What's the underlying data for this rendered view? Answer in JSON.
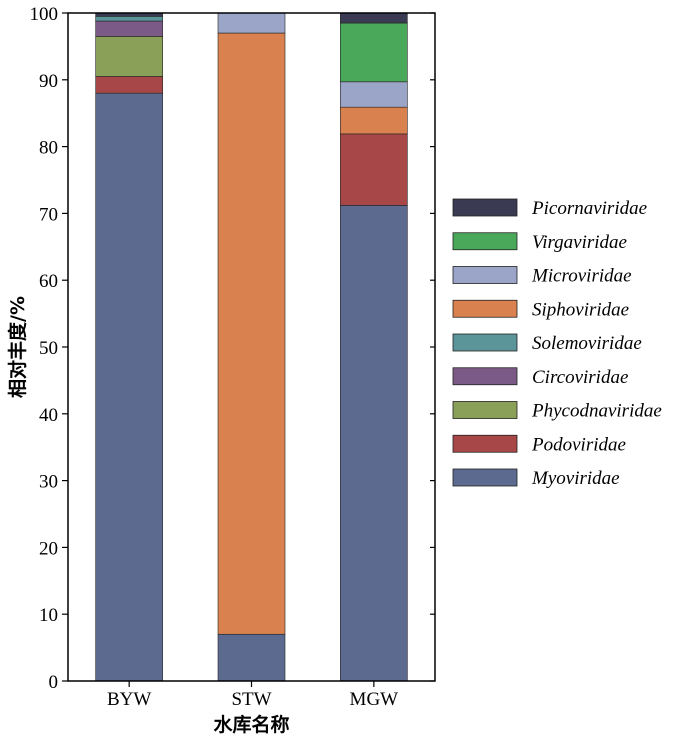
{
  "chart_data": {
    "type": "bar",
    "stacked": true,
    "categories": [
      "BYW",
      "STW",
      "MGW"
    ],
    "xlabel": "水库名称",
    "ylabel": "相对丰度/%",
    "ylim": [
      0,
      100
    ],
    "yticks": [
      0,
      10,
      20,
      30,
      40,
      50,
      60,
      70,
      80,
      90,
      100
    ],
    "grid": false,
    "legend_position": "right",
    "series": [
      {
        "name": "Myoviridae",
        "color": "#5b6a8e",
        "values": [
          88.0,
          7.0,
          71.2
        ]
      },
      {
        "name": "Podoviridae",
        "color": "#a84747",
        "values": [
          2.5,
          0.0,
          10.7
        ]
      },
      {
        "name": "Phycodnaviridae",
        "color": "#8aa058",
        "values": [
          6.0,
          0.0,
          0.0
        ]
      },
      {
        "name": "Circoviridae",
        "color": "#7b5a87",
        "values": [
          2.3,
          0.0,
          0.0
        ]
      },
      {
        "name": "Solemoviridae",
        "color": "#5b9499",
        "values": [
          0.7,
          0.0,
          0.0
        ]
      },
      {
        "name": "Siphoviridae",
        "color": "#d9814f",
        "values": [
          0.0,
          90.0,
          4.0
        ]
      },
      {
        "name": "Microviridae",
        "color": "#9aa5c7",
        "values": [
          0.0,
          3.0,
          3.8
        ]
      },
      {
        "name": "Virgaviridae",
        "color": "#4aa85a",
        "values": [
          0.0,
          0.0,
          8.8
        ]
      },
      {
        "name": "Picornaviridae",
        "color": "#3a3a52",
        "values": [
          0.5,
          0.0,
          1.5
        ]
      }
    ]
  }
}
